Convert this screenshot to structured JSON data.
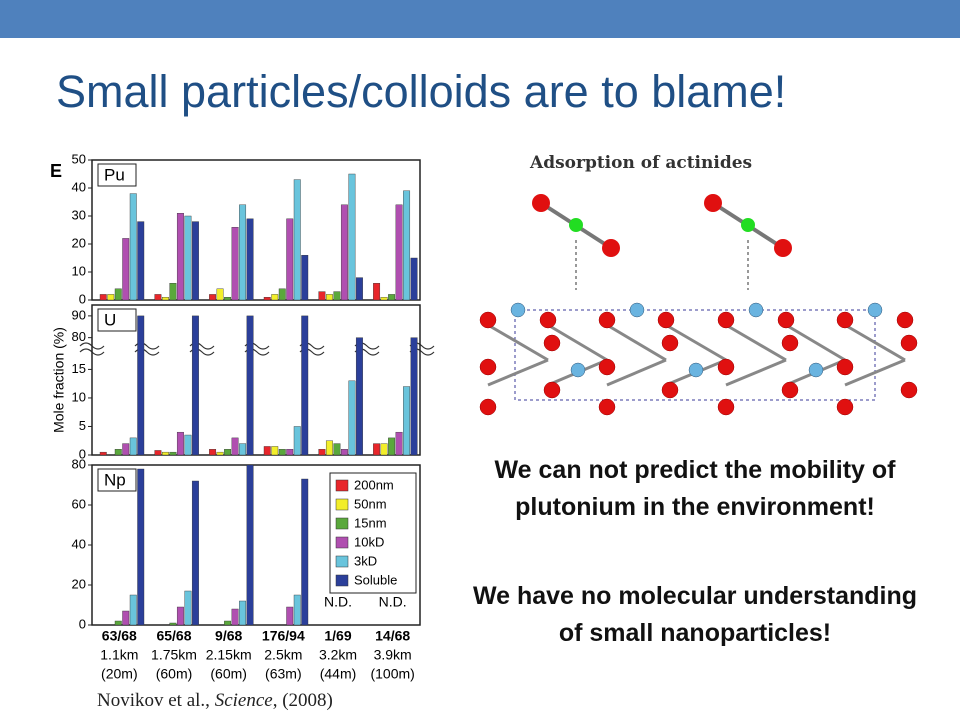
{
  "slide": {
    "title": "Small particles/colloids are to blame!",
    "structure_caption": "Adsorption of actinides",
    "paragraphs": [
      "We can not predict the mobility of plutonium in the environment!",
      "We have no molecular understanding of small nanoparticles!"
    ],
    "citation": {
      "authors": "Novikov et al.,",
      "journal": "Science",
      "rest": ", (2008)"
    }
  },
  "chart_data": [
    {
      "type": "bar",
      "panel": "E",
      "label": "Pu",
      "ylim": [
        0,
        50
      ],
      "yticks": [
        0,
        10,
        20,
        30,
        40,
        50
      ],
      "series": [
        {
          "color": "#e8262b",
          "values": [
            2,
            2,
            2,
            1,
            3,
            6
          ]
        },
        {
          "color": "#f2ee2a",
          "values": [
            2,
            1,
            4,
            2,
            2,
            1
          ]
        },
        {
          "color": "#5aa83c",
          "values": [
            4,
            6,
            1,
            4,
            3,
            2
          ]
        },
        {
          "color": "#b04fb0",
          "values": [
            22,
            31,
            26,
            29,
            34,
            34
          ]
        },
        {
          "color": "#69c4dc",
          "values": [
            38,
            30,
            34,
            43,
            45,
            39
          ]
        },
        {
          "color": "#2b3f9a",
          "values": [
            28,
            28,
            29,
            16,
            8,
            15
          ]
        }
      ]
    },
    {
      "type": "bar",
      "label": "U",
      "y_label": "Mole fraction (%)",
      "ylim": [
        0,
        95
      ],
      "yticks": [
        0,
        5,
        10,
        15,
        80,
        90
      ],
      "axis_break": [
        17,
        78
      ],
      "series": [
        {
          "color": "#e8262b",
          "values": [
            0.5,
            0.8,
            1,
            1.5,
            1,
            2
          ]
        },
        {
          "color": "#f2ee2a",
          "values": [
            0,
            0.5,
            0.5,
            1.5,
            2.5,
            2
          ]
        },
        {
          "color": "#5aa83c",
          "values": [
            1,
            0.5,
            1,
            1,
            2,
            3
          ]
        },
        {
          "color": "#b04fb0",
          "values": [
            2,
            4,
            3,
            1,
            1,
            4
          ]
        },
        {
          "color": "#69c4dc",
          "values": [
            3,
            3.5,
            2,
            5,
            13,
            12
          ]
        },
        {
          "color": "#2b3f9a",
          "values": [
            90,
            90,
            90,
            90,
            80,
            80
          ]
        }
      ]
    },
    {
      "type": "bar",
      "label": "Np",
      "ylim": [
        0,
        80
      ],
      "yticks": [
        0,
        20,
        40,
        60,
        80
      ],
      "categories": [
        "63/68",
        "65/68",
        "9/68",
        "176/94",
        "1/69",
        "14/68"
      ],
      "distances": [
        "1.1km",
        "1.75km",
        "2.15km",
        "2.5km",
        "3.2km",
        "3.9km"
      ],
      "depths": [
        "(20m)",
        "(60m)",
        "(60m)",
        "(63m)",
        "(44m)",
        "(100m)"
      ],
      "annotations": [
        "N.D.",
        "N.D."
      ],
      "legend": "upper right",
      "series": [
        {
          "name": "200nm",
          "color": "#e8262b",
          "values": [
            0,
            0,
            0,
            0,
            null,
            null
          ]
        },
        {
          "name": "50nm",
          "color": "#f2ee2a",
          "values": [
            0,
            0,
            0,
            0,
            null,
            null
          ]
        },
        {
          "name": "15nm",
          "color": "#5aa83c",
          "values": [
            2,
            1,
            2,
            0,
            null,
            null
          ]
        },
        {
          "name": "10kD",
          "color": "#b04fb0",
          "values": [
            7,
            9,
            8,
            9,
            null,
            null
          ]
        },
        {
          "name": "3kD",
          "color": "#69c4dc",
          "values": [
            15,
            17,
            12,
            15,
            null,
            null
          ]
        },
        {
          "name": "Soluble",
          "color": "#2b3f9a",
          "values": [
            78,
            72,
            80,
            73,
            null,
            null
          ]
        }
      ]
    }
  ]
}
